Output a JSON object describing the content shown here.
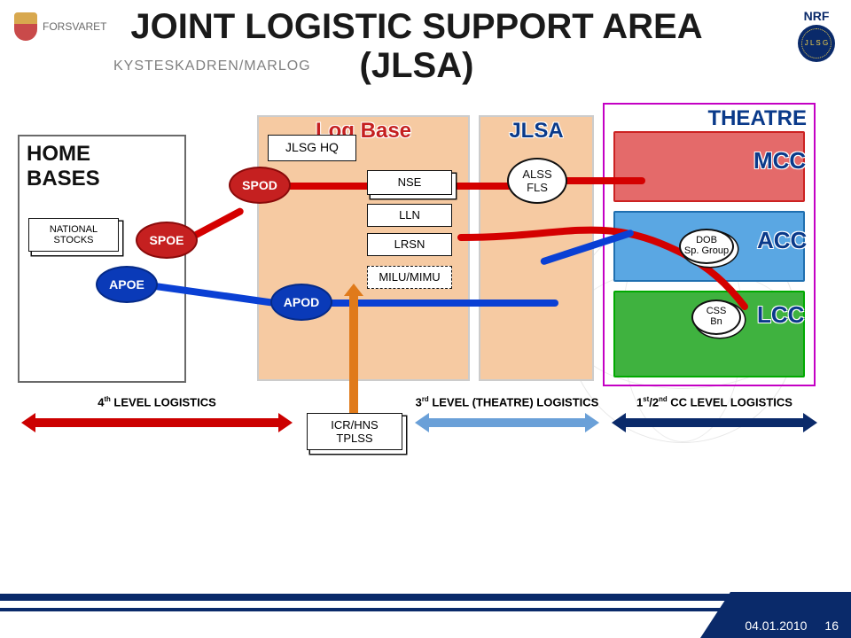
{
  "title": "JOINT LOGISTIC SUPPORT AREA (JLSA)",
  "subtitle": "KYSTESKADREN/MARLOG",
  "brand": "FORSVARET",
  "nrf": "NRF",
  "nato_letters": "J L S G",
  "regions": {
    "home_bases": "HOME BASES",
    "log_base": "Log Base",
    "jlsa": "JLSA",
    "theatre": "THEATRE"
  },
  "home_bases": {
    "national_stocks": "NATIONAL STOCKS"
  },
  "nodes": {
    "jlsg_hq": "JLSG HQ",
    "nse": "NSE",
    "lln": "LLN",
    "lrsn": "LRSN",
    "milu": "MILU/MIMU",
    "alss1": "ALSS",
    "alss2": "FLS",
    "dob1": "DOB",
    "dob2": "Sp. Group",
    "css1": "CSS",
    "css2": "Bn"
  },
  "ports": {
    "spoe": "SPOE",
    "spod": "SPOD",
    "apoe": "APOE",
    "apod": "APOD"
  },
  "cc": {
    "mcc": "MCC",
    "acc": "ACC",
    "lcc": "LCC"
  },
  "tplss1": "ICR/HNS",
  "tplss2": "TPLSS",
  "levels": {
    "l4_pre": "4",
    "l4_sup": "th",
    "l4_post": " LEVEL LOGISTICS",
    "l3_pre": "3",
    "l3_sup": "rd",
    "l3_post": " LEVEL (THEATRE) LOGISTICS",
    "l12_pre": "1",
    "l12_sup1": "st",
    "l12_mid": "/2",
    "l12_sup2": "nd",
    "l12_post": " CC LEVEL LOGISTICS"
  },
  "levels_colors": {
    "l4": "#cc0000",
    "l3": "#6aa0d8",
    "l12": "#0a2a6a"
  },
  "footer": {
    "date": "04.01.2010",
    "page": "16"
  }
}
